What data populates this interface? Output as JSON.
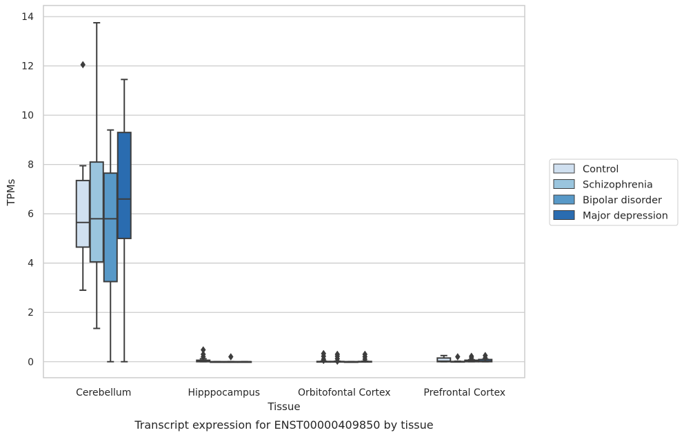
{
  "chart_data": {
    "type": "box",
    "xlabel": "Tissue",
    "ylabel": "TPMs",
    "caption": "Transcript expression for ENST00000409850 by tissue",
    "ylim": [
      -0.65,
      14.45
    ],
    "yticks": [
      0,
      2,
      4,
      6,
      8,
      10,
      12,
      14
    ],
    "grid": "horizontal",
    "legend_position": "right",
    "categories": [
      "Cerebellum",
      "Hipppocampus",
      "Orbitofontal Cortex",
      "Prefrontal Cortex"
    ],
    "series": [
      {
        "name": "Control",
        "color": "#d0e0f0",
        "boxes": [
          {
            "whislo": 2.9,
            "q1": 4.65,
            "med": 5.65,
            "q3": 7.35,
            "whishi": 7.95,
            "fliers": [
              12.05
            ]
          },
          {
            "whislo": 0,
            "q1": 0,
            "med": 0.02,
            "q3": 0.06,
            "whishi": 0.12,
            "fliers": [
              0.2,
              0.3,
              0.48
            ]
          },
          {
            "whislo": 0,
            "q1": 0,
            "med": 0,
            "q3": 0.01,
            "whishi": 0.02,
            "fliers": [
              0.05,
              0.1,
              0.22,
              0.33
            ]
          },
          {
            "whislo": 0,
            "q1": 0,
            "med": 0.02,
            "q3": 0.15,
            "whishi": 0.25,
            "fliers": []
          }
        ]
      },
      {
        "name": "Schizophrenia",
        "color": "#9ac5de",
        "boxes": [
          {
            "whislo": 1.35,
            "q1": 4.05,
            "med": 5.8,
            "q3": 8.1,
            "whishi": 13.75,
            "fliers": []
          },
          {
            "whislo": 0,
            "q1": 0,
            "med": 0,
            "q3": 0,
            "whishi": 0,
            "fliers": []
          },
          {
            "whislo": 0,
            "q1": 0,
            "med": 0,
            "q3": 0.01,
            "whishi": 0.02,
            "fliers": [
              0.02,
              0.12,
              0.22,
              0.3
            ]
          },
          {
            "whislo": 0,
            "q1": 0,
            "med": 0,
            "q3": 0.01,
            "whishi": 0.02,
            "fliers": [
              0.2
            ]
          }
        ]
      },
      {
        "name": "Bipolar disorder",
        "color": "#5899c8",
        "boxes": [
          {
            "whislo": 0,
            "q1": 3.25,
            "med": 5.8,
            "q3": 7.65,
            "whishi": 9.4,
            "fliers": []
          },
          {
            "whislo": 0,
            "q1": 0,
            "med": 0,
            "q3": 0,
            "whishi": 0,
            "fliers": [
              0.2
            ]
          },
          {
            "whislo": 0,
            "q1": 0,
            "med": 0,
            "q3": 0,
            "whishi": 0,
            "fliers": []
          },
          {
            "whislo": 0,
            "q1": 0,
            "med": 0.01,
            "q3": 0.06,
            "whishi": 0.08,
            "fliers": [
              0.15,
              0.22
            ]
          }
        ]
      },
      {
        "name": "Major depression",
        "color": "#2a6cb0",
        "boxes": [
          {
            "whislo": 0,
            "q1": 5.0,
            "med": 6.6,
            "q3": 9.3,
            "whishi": 11.45,
            "fliers": []
          },
          {
            "whislo": 0,
            "q1": 0,
            "med": 0,
            "q3": 0,
            "whishi": 0,
            "fliers": []
          },
          {
            "whislo": 0,
            "q1": 0,
            "med": 0,
            "q3": 0.01,
            "whishi": 0.02,
            "fliers": [
              0.1,
              0.2,
              0.3
            ]
          },
          {
            "whislo": 0,
            "q1": 0,
            "med": 0.02,
            "q3": 0.09,
            "whishi": 0.1,
            "fliers": [
              0.15,
              0.25
            ]
          }
        ]
      }
    ]
  }
}
